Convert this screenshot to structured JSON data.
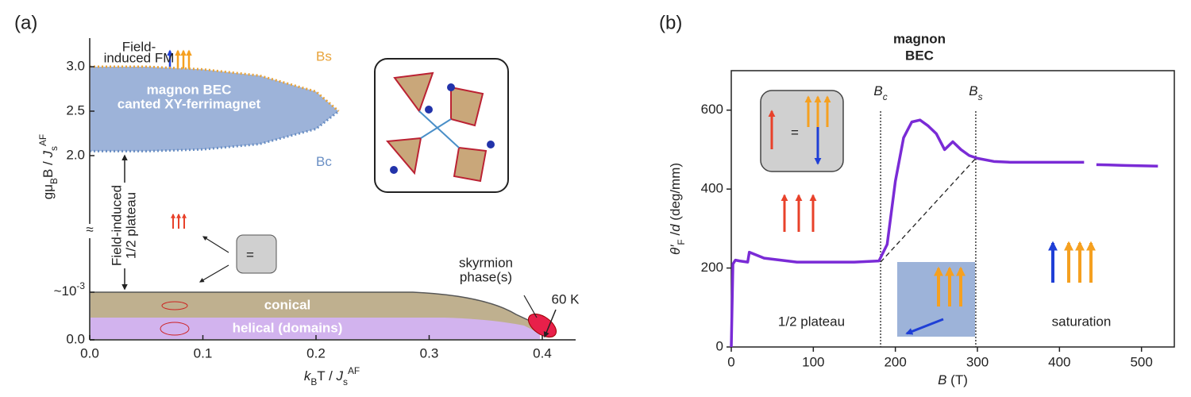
{
  "chart_data": [
    {
      "type": "phase",
      "label": "(a)",
      "xlabel": [
        {
          "t": "k",
          "s": "i"
        },
        {
          "t": "B",
          "s": "sub"
        },
        {
          "t": "T / ",
          "s": "n"
        },
        {
          "t": "J",
          "s": "i"
        },
        {
          "t": "s",
          "s": "sub"
        },
        {
          "t": "AF",
          "s": "sup"
        }
      ],
      "ylabel": [
        {
          "t": "gμ",
          "s": "n"
        },
        {
          "t": "B",
          "s": "sub"
        },
        {
          "t": "B / ",
          "s": "n"
        },
        {
          "t": "J",
          "s": "i"
        },
        {
          "t": "s",
          "s": "sub"
        },
        {
          "t": "AF",
          "s": "sup"
        }
      ],
      "xlim": [
        0,
        0.43
      ],
      "xticks": [
        {
          "value": 0,
          "label": "0.0"
        },
        {
          "value": 0.1,
          "label": "0.1"
        },
        {
          "value": 0.2,
          "label": "0.2"
        },
        {
          "value": 0.3,
          "label": "0.3"
        },
        {
          "value": 0.4,
          "label": "0.4"
        }
      ],
      "ylim_upper": [
        2,
        3.25
      ],
      "yticks_upper": [
        {
          "value": 2,
          "label": "2.0"
        },
        {
          "value": 2.5,
          "label": "2.5"
        },
        {
          "value": 3,
          "label": "3.0"
        }
      ],
      "ylim_lower": [
        0,
        0.0013
      ],
      "yticks_lower": [
        {
          "value": 0,
          "label": "0.0"
        },
        {
          "value": 0.001,
          "label": "~10",
          "sup": "-3"
        }
      ],
      "x": [
        0,
        0.05,
        0.1,
        0.15,
        0.2,
        0.22
      ],
      "series": [
        {
          "name": "Bs",
          "color": "#e8a33a",
          "values": [
            3.0,
            3.0,
            2.97,
            2.9,
            2.72,
            2.5
          ]
        },
        {
          "name": "Bc",
          "color": "#6a8fc4",
          "values": [
            2.05,
            2.05,
            2.07,
            2.13,
            2.3,
            2.5
          ]
        }
      ],
      "region_color": "#9db3d9",
      "annotations": {
        "fm": [
          "Field-",
          "induced FM"
        ],
        "bec": "magnon BEC",
        "ferri": "canted XY-ferrimagnet",
        "plateau": [
          "Field-induced",
          "1/2 plateau"
        ],
        "conical": "conical",
        "helical": "helical (domains)",
        "skyrmion": [
          "skyrmion",
          "phase(s)"
        ],
        "temp": "60 K",
        "break": "≈"
      }
    },
    {
      "type": "line",
      "label": "(b)",
      "title": [
        "magnon",
        "BEC"
      ],
      "xlabel": [
        {
          "t": "B",
          "s": "i"
        },
        {
          "t": " (T)",
          "s": "n"
        }
      ],
      "ylabel": [
        {
          "t": "θ′",
          "s": "i"
        },
        {
          "t": "F",
          "s": "sub"
        },
        {
          "t": " /",
          "s": "n"
        },
        {
          "t": "d",
          "s": "i"
        },
        {
          "t": " (deg/mm)",
          "s": "n"
        }
      ],
      "xlim": [
        0,
        540
      ],
      "xticks": [
        0,
        100,
        200,
        300,
        400,
        500
      ],
      "ylim": [
        0,
        700
      ],
      "yticks": [
        0,
        200,
        400,
        600
      ],
      "series": [
        {
          "name": "data",
          "color": "#7a2bd6",
          "x": [
            0,
            2,
            5,
            10,
            20,
            22,
            40,
            80,
            120,
            150,
            180,
            190,
            200,
            210,
            220,
            230,
            240,
            250,
            260,
            270,
            280,
            290,
            300,
            320,
            340,
            360,
            400,
            430,
            437,
            445,
            480,
            520
          ],
          "values": [
            0,
            210,
            220,
            218,
            215,
            240,
            225,
            215,
            215,
            215,
            218,
            260,
            420,
            530,
            570,
            575,
            560,
            540,
            500,
            520,
            500,
            485,
            478,
            470,
            468,
            468,
            468,
            468,
            null,
            462,
            460,
            458
          ]
        }
      ],
      "reference_line": {
        "x": [
          182,
          298
        ],
        "values": [
          215,
          478
        ]
      },
      "vlines": [
        {
          "value": 182,
          "label": "B",
          "sub": "c"
        },
        {
          "value": 298,
          "label": "B",
          "sub": "s"
        }
      ],
      "annotations": {
        "plateau": "1/2 plateau",
        "saturation": "saturation",
        "eq": "="
      }
    }
  ]
}
